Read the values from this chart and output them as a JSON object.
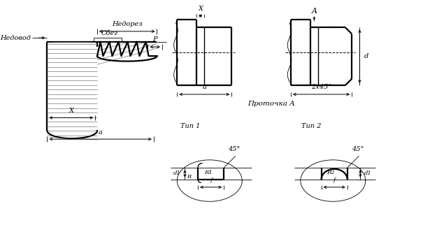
{
  "bg_color": "#ffffff",
  "labels": {
    "nedorez": "Недорез",
    "nedovod": "Недовод",
    "sbeg": "Сбег",
    "P": "P",
    "X": "X",
    "a": "a",
    "protochka": "Проточка A",
    "tip1": "Тип 1",
    "tip2": "Тип 2",
    "deg45": "45°",
    "R": "R",
    "R1": "R1",
    "R2": "R2",
    "f": "f",
    "d1": "d1",
    "A_label": "A",
    "d_label": "d",
    "zx45": "2x45°"
  }
}
